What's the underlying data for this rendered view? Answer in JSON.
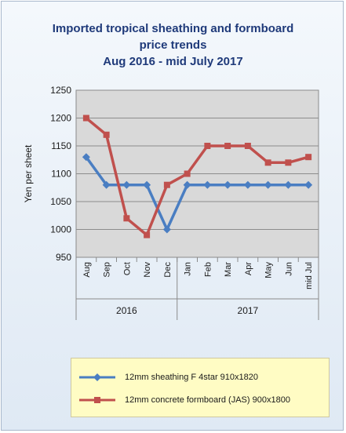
{
  "title_lines": [
    "Imported tropical sheathing and formboard",
    "price trends",
    "Aug 2016 - mid July 2017"
  ],
  "chart_data": {
    "type": "line",
    "title": "Imported tropical sheathing and formboard price trends Aug 2016 - mid July 2017",
    "xlabel": "",
    "ylabel": "Yen per sheet",
    "ylim": [
      950,
      1250
    ],
    "yticks": [
      950,
      1000,
      1050,
      1100,
      1150,
      1200,
      1250
    ],
    "grid": true,
    "legend": "bottom",
    "categories": [
      "Aug",
      "Sep",
      "Oct",
      "Nov",
      "Dec",
      "Jan",
      "Feb",
      "Mar",
      "Apr",
      "May",
      "Jun",
      "mid Jul"
    ],
    "groups": [
      {
        "label": "2016",
        "count": 5
      },
      {
        "label": "2017",
        "count": 7
      }
    ],
    "series": [
      {
        "name": "12mm sheathing F 4star 910x1820",
        "color": "#4a7ec2",
        "marker": "diamond",
        "values": [
          1130,
          1080,
          1080,
          1080,
          1000,
          1080,
          1080,
          1080,
          1080,
          1080,
          1080,
          1080
        ]
      },
      {
        "name": "12mm concrete formboard (JAS) 900x1800",
        "color": "#c0504d",
        "marker": "square",
        "values": [
          1200,
          1170,
          1020,
          990,
          1080,
          1100,
          1150,
          1150,
          1150,
          1120,
          1120,
          1130
        ]
      }
    ]
  }
}
